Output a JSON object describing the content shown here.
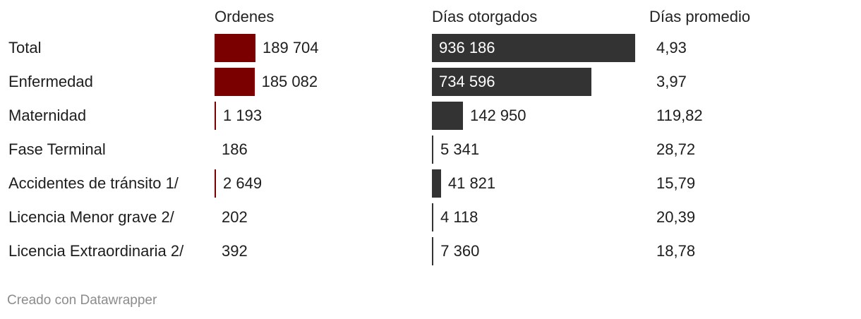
{
  "chart_data": {
    "type": "table",
    "columns": [
      "Ordenes",
      "Días otorgados",
      "Días promedio"
    ],
    "rows": [
      {
        "label": "Total",
        "ordenes": 189704,
        "ordenes_text": "189 704",
        "dias": 936186,
        "dias_text": "936 186",
        "promedio": "4,93"
      },
      {
        "label": "Enfermedad",
        "ordenes": 185082,
        "ordenes_text": "185 082",
        "dias": 734596,
        "dias_text": "734 596",
        "promedio": "3,97"
      },
      {
        "label": "Maternidad",
        "ordenes": 1193,
        "ordenes_text": "1 193",
        "dias": 142950,
        "dias_text": "142 950",
        "promedio": "119,82"
      },
      {
        "label": "Fase Terminal",
        "ordenes": 186,
        "ordenes_text": "186",
        "dias": 5341,
        "dias_text": "5 341",
        "promedio": "28,72"
      },
      {
        "label": "Accidentes de tránsito 1/",
        "ordenes": 2649,
        "ordenes_text": "2 649",
        "dias": 41821,
        "dias_text": "41 821",
        "promedio": "15,79"
      },
      {
        "label": "Licencia Menor grave 2/",
        "ordenes": 202,
        "ordenes_text": "202",
        "dias": 4118,
        "dias_text": "4 118",
        "promedio": "20,39"
      },
      {
        "label": "Licencia Extraordinaria 2/",
        "ordenes": 392,
        "ordenes_text": "392",
        "dias": 7360,
        "dias_text": "7 360",
        "promedio": "18,78"
      }
    ],
    "colors": {
      "ordenes_bar": "#7a0000",
      "dias_bar": "#333333"
    },
    "ordenes_max": 189704,
    "dias_max": 936186
  },
  "footer": "Creado con Datawrapper"
}
